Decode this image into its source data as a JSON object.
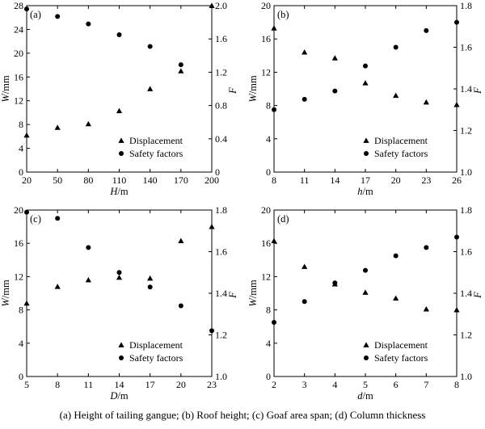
{
  "caption": "(a) Height of tailing gangue; (b) Roof  height; (c) Goaf area span; (d) Column thickness",
  "chart_data": [
    {
      "type": "scatter",
      "panel_label": "(a)",
      "xlabel_var": "H",
      "xlabel_unit": "/m",
      "ylabel_var": "W",
      "ylabel_unit": "/mm",
      "y2label_var": "F",
      "x_ticks": [
        "20",
        "50",
        "80",
        "110",
        "140",
        "170",
        "200"
      ],
      "xlim": [
        20,
        200
      ],
      "y_ticks": [
        "0",
        "4",
        "8",
        "12",
        "16",
        "20",
        "24",
        "28"
      ],
      "ylim": [
        0,
        28
      ],
      "y2_ticks": [
        "0",
        "0.4",
        "0.8",
        "1.2",
        "1.6",
        "2.0"
      ],
      "y2lim": [
        0,
        2.0
      ],
      "legend": [
        "Displacement",
        "Safety factors"
      ],
      "series": [
        {
          "name": "Displacement",
          "marker": "triangle",
          "axis": "left",
          "x": [
            20,
            50,
            80,
            110,
            140,
            170,
            200
          ],
          "y": [
            6.2,
            7.5,
            8.1,
            10.3,
            14.0,
            17.0,
            28.0
          ]
        },
        {
          "name": "Safety factors",
          "marker": "circle",
          "axis": "right",
          "x": [
            20,
            50,
            80,
            110,
            140,
            170
          ],
          "y": [
            1.96,
            1.87,
            1.78,
            1.65,
            1.51,
            1.29
          ]
        }
      ]
    },
    {
      "type": "scatter",
      "panel_label": "(b)",
      "xlabel_var": "h",
      "xlabel_unit": "/m",
      "ylabel_var": "W",
      "ylabel_unit": "/mm",
      "y2label_var": "F",
      "x_ticks": [
        "8",
        "11",
        "14",
        "17",
        "20",
        "23",
        "26"
      ],
      "xlim": [
        8,
        26
      ],
      "y_ticks": [
        "0",
        "4",
        "8",
        "12",
        "16",
        "20"
      ],
      "ylim": [
        0,
        20
      ],
      "y2_ticks": [
        "1.0",
        "1.2",
        "1.4",
        "1.6",
        "1.8"
      ],
      "y2lim": [
        1.0,
        1.8
      ],
      "legend": [
        "Displacement",
        "Safety factors"
      ],
      "series": [
        {
          "name": "Displacement",
          "marker": "triangle",
          "axis": "left",
          "x": [
            8,
            11,
            14,
            17,
            20,
            23,
            26
          ],
          "y": [
            17.3,
            14.4,
            13.7,
            10.7,
            9.2,
            8.4,
            8.1
          ]
        },
        {
          "name": "Safety factors",
          "marker": "circle",
          "axis": "right",
          "x": [
            8,
            11,
            14,
            17,
            20,
            23,
            26
          ],
          "y": [
            1.3,
            1.35,
            1.39,
            1.51,
            1.6,
            1.68,
            1.72
          ]
        }
      ]
    },
    {
      "type": "scatter",
      "panel_label": "(c)",
      "xlabel_var": "D",
      "xlabel_unit": "/m",
      "ylabel_var": "W",
      "ylabel_unit": "/mm",
      "y2label_var": "F",
      "x_ticks": [
        "5",
        "8",
        "11",
        "14",
        "17",
        "20",
        "23"
      ],
      "xlim": [
        5,
        23
      ],
      "y_ticks": [
        "0",
        "4",
        "8",
        "12",
        "16",
        "20"
      ],
      "ylim": [
        0,
        20
      ],
      "y2_ticks": [
        "1.0",
        "1.2",
        "1.4",
        "1.6",
        "1.8"
      ],
      "y2lim": [
        1.0,
        1.8
      ],
      "legend": [
        "Displacement",
        "Safety factors"
      ],
      "series": [
        {
          "name": "Displacement",
          "marker": "triangle",
          "axis": "left",
          "x": [
            5,
            8,
            11,
            14,
            17,
            20,
            23
          ],
          "y": [
            8.8,
            10.8,
            11.6,
            11.9,
            11.8,
            16.3,
            18.0
          ]
        },
        {
          "name": "Safety factors",
          "marker": "circle",
          "axis": "right",
          "x": [
            5,
            8,
            11,
            14,
            17,
            20,
            23
          ],
          "y": [
            1.79,
            1.76,
            1.62,
            1.5,
            1.43,
            1.34,
            1.22
          ]
        }
      ]
    },
    {
      "type": "scatter",
      "panel_label": "(d)",
      "xlabel_var": "d",
      "xlabel_unit": "/m",
      "ylabel_var": "W",
      "ylabel_unit": "/mm",
      "y2label_var": "F",
      "x_ticks": [
        "2",
        "3",
        "4",
        "5",
        "6",
        "7",
        "8"
      ],
      "xlim": [
        2,
        8
      ],
      "y_ticks": [
        "0",
        "4",
        "8",
        "12",
        "16",
        "20"
      ],
      "ylim": [
        0,
        20
      ],
      "y2_ticks": [
        "1.0",
        "1.2",
        "1.4",
        "1.6",
        "1.8"
      ],
      "y2lim": [
        1.0,
        1.8
      ],
      "legend": [
        "Displacement",
        "Safety factors"
      ],
      "series": [
        {
          "name": "Displacement",
          "marker": "triangle",
          "axis": "left",
          "x": [
            2,
            3,
            4,
            5,
            6,
            7,
            8
          ],
          "y": [
            16.3,
            13.2,
            11.1,
            10.1,
            9.4,
            8.1,
            8.0
          ]
        },
        {
          "name": "Safety factors",
          "marker": "circle",
          "axis": "right",
          "x": [
            2,
            3,
            4,
            5,
            6,
            7,
            8
          ],
          "y": [
            1.26,
            1.36,
            1.45,
            1.51,
            1.58,
            1.62,
            1.67
          ]
        }
      ]
    }
  ]
}
